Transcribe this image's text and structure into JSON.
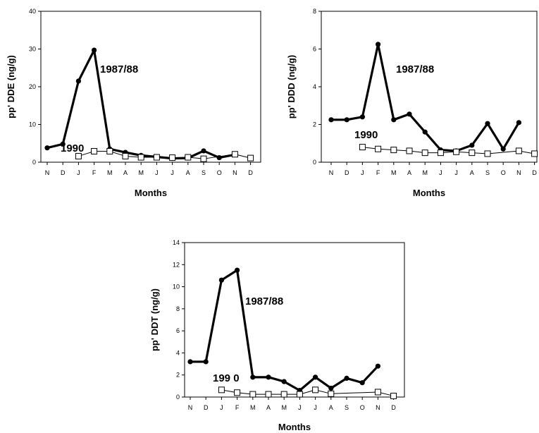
{
  "chart_data": [
    {
      "type": "line",
      "categories": [
        "N",
        "D",
        "J",
        "F",
        "M",
        "A",
        "M",
        "J",
        "J",
        "A",
        "S",
        "O",
        "N",
        "D"
      ],
      "ylabel": "pp' DDE (ng/g)",
      "xlabel": "Months",
      "ylim": [
        0,
        40
      ],
      "yticks": [
        0,
        10,
        20,
        30,
        40
      ],
      "grid": false,
      "series": [
        {
          "name": "1987/88",
          "values": [
            3.8,
            4.8,
            21.5,
            29.7,
            3.5,
            2.6,
            1.8,
            1.4,
            1.0,
            1.1,
            3.0,
            1.2,
            2.0,
            null
          ],
          "marker": "filled-circle",
          "color": "#000000"
        },
        {
          "name": "1990",
          "values": [
            null,
            null,
            1.6,
            2.9,
            2.9,
            1.6,
            1.3,
            1.3,
            1.2,
            1.3,
            0.9,
            null,
            2.1,
            1.1
          ],
          "marker": "open-square",
          "color": "#000000"
        }
      ],
      "annotations": [
        "1987/88",
        "1990"
      ]
    },
    {
      "type": "line",
      "categories": [
        "N",
        "D",
        "J",
        "F",
        "M",
        "A",
        "M",
        "J",
        "J",
        "A",
        "S",
        "O",
        "N",
        "D"
      ],
      "ylabel": "pp' DDD (ng/g)",
      "xlabel": "Months",
      "ylim": [
        0,
        8
      ],
      "yticks": [
        0,
        2,
        4,
        6,
        8
      ],
      "grid": false,
      "series": [
        {
          "name": "1987/88",
          "values": [
            2.25,
            2.25,
            2.4,
            6.25,
            2.25,
            2.55,
            1.6,
            0.65,
            0.6,
            0.9,
            2.05,
            0.7,
            2.1,
            null
          ],
          "marker": "filled-circle",
          "color": "#000000"
        },
        {
          "name": "1990",
          "values": [
            null,
            null,
            0.8,
            0.7,
            0.65,
            0.6,
            0.5,
            0.5,
            0.55,
            0.5,
            0.45,
            null,
            0.6,
            0.45
          ],
          "marker": "open-square",
          "color": "#000000"
        }
      ],
      "annotations": [
        "1987/88",
        "1990"
      ]
    },
    {
      "type": "line",
      "categories": [
        "N",
        "D",
        "J",
        "F",
        "M",
        "A",
        "M",
        "J",
        "J",
        "A",
        "S",
        "O",
        "N",
        "D"
      ],
      "ylabel": "pp' DDT (ng/g)",
      "xlabel": "Months",
      "ylim": [
        0,
        14
      ],
      "yticks": [
        0,
        2,
        4,
        6,
        8,
        10,
        12,
        14
      ],
      "grid": false,
      "series": [
        {
          "name": "1987/88",
          "values": [
            3.2,
            3.2,
            10.6,
            11.5,
            1.8,
            1.8,
            1.4,
            0.6,
            1.8,
            0.8,
            1.7,
            1.3,
            2.8,
            null
          ],
          "marker": "filled-circle",
          "color": "#000000"
        },
        {
          "name": "1990",
          "values": [
            null,
            null,
            0.65,
            0.4,
            0.25,
            0.25,
            0.25,
            0.25,
            0.65,
            0.3,
            null,
            null,
            0.45,
            0.1
          ],
          "marker": "open-square",
          "color": "#000000"
        }
      ],
      "annotations": [
        "1987/88",
        "199 0"
      ]
    }
  ]
}
